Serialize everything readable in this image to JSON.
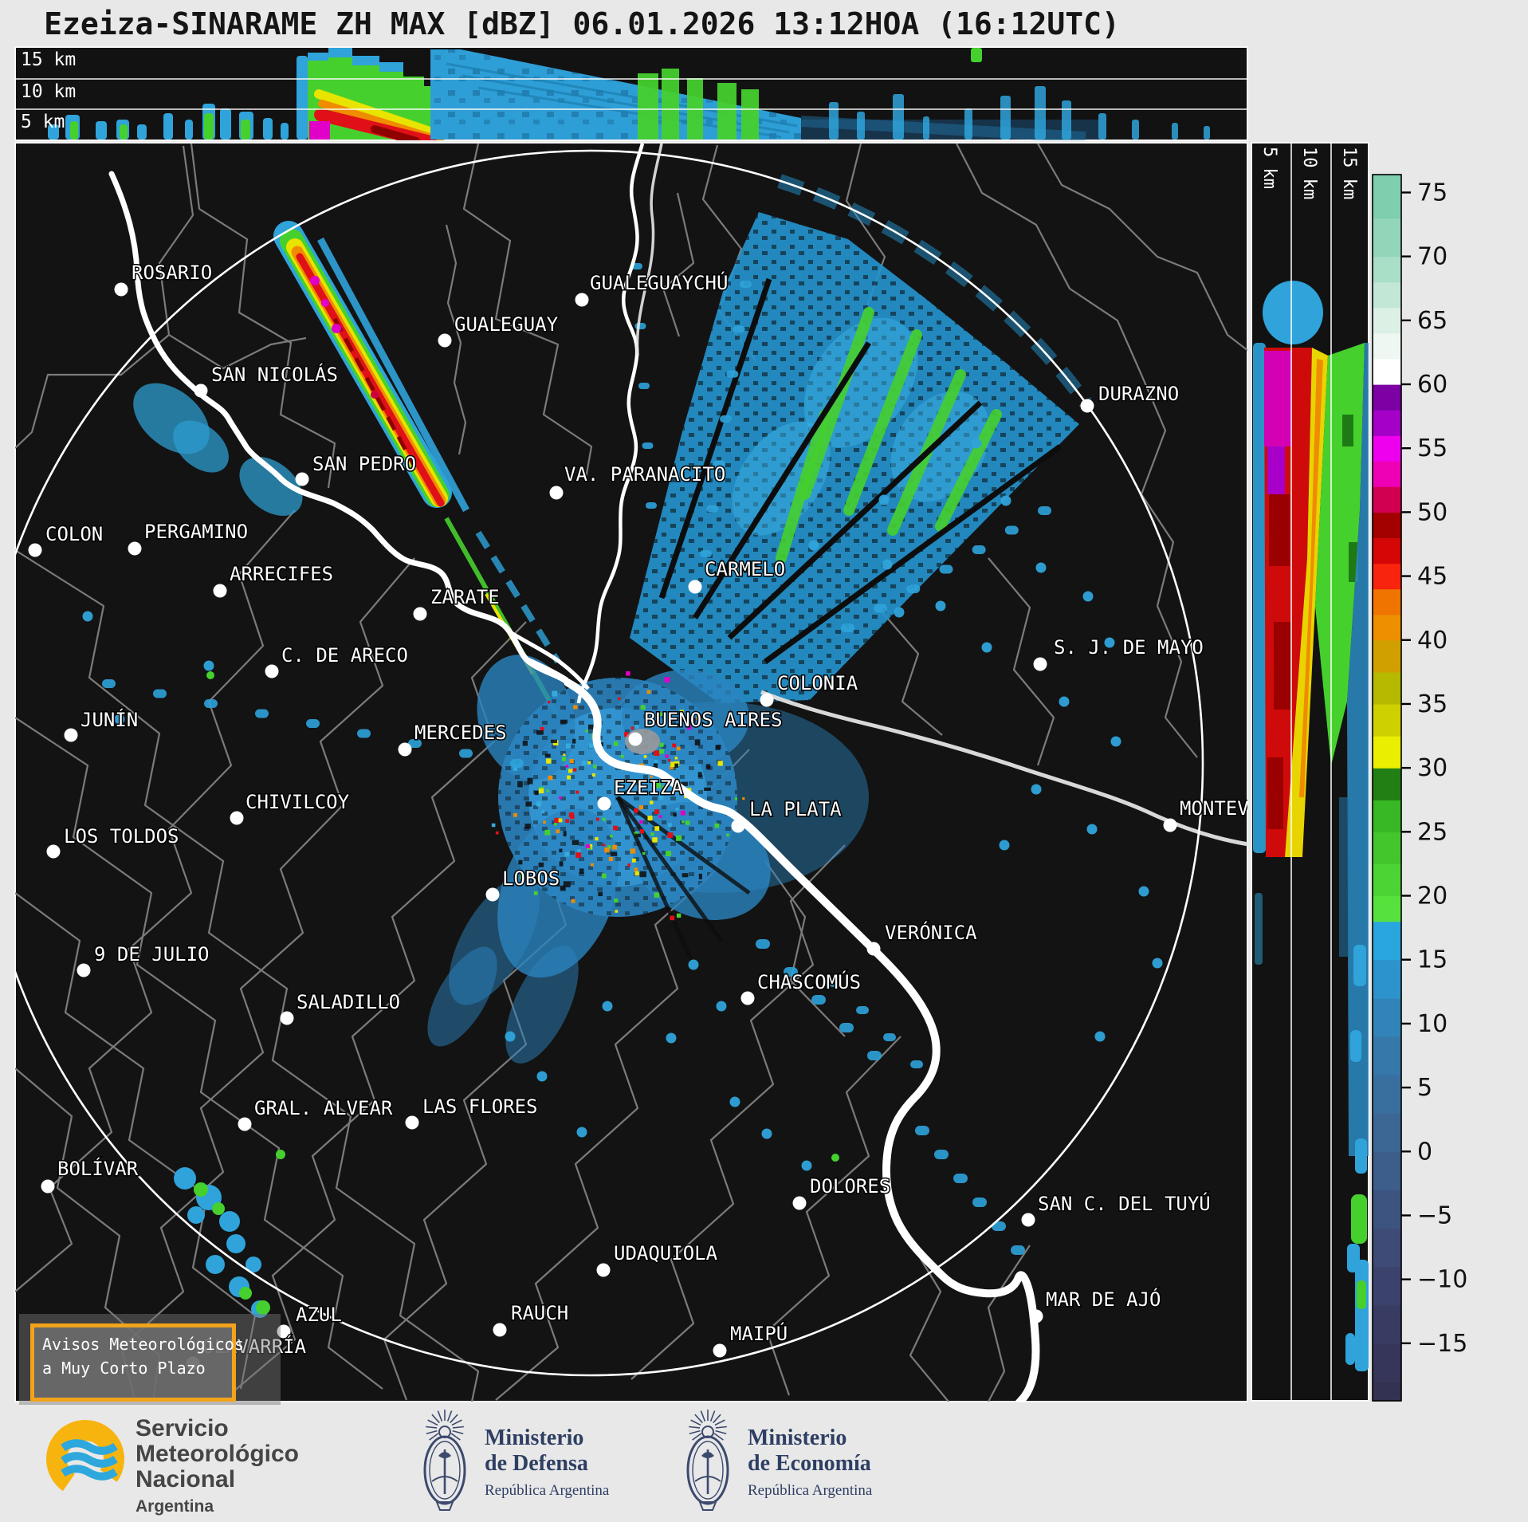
{
  "title": "Ezeiza-SINARAME ZH MAX [dBZ] 06.01.2026 13:12HOA (16:12UTC)",
  "top_panel": {
    "height_labels": [
      "15 km",
      "10 km",
      "5 km"
    ]
  },
  "side_panel": {
    "height_labels": [
      "5 km",
      "10 km",
      "15 km"
    ]
  },
  "colorbar": {
    "unit": "dBZ",
    "ticks": [
      75,
      70,
      65,
      60,
      55,
      50,
      45,
      40,
      35,
      30,
      25,
      20,
      15,
      10,
      5,
      0,
      -5,
      -10,
      -15
    ],
    "range": [
      -19.5,
      76.4
    ],
    "segments": [
      {
        "from": -19.5,
        "to": -18,
        "color": "#343252"
      },
      {
        "from": -18,
        "to": -15,
        "color": "#36365a"
      },
      {
        "from": -15,
        "to": -12,
        "color": "#393c62"
      },
      {
        "from": -12,
        "to": -9,
        "color": "#3b436c"
      },
      {
        "from": -9,
        "to": -6,
        "color": "#3d4b76"
      },
      {
        "from": -6,
        "to": -3,
        "color": "#3e5480"
      },
      {
        "from": -3,
        "to": 0,
        "color": "#3d5d8a"
      },
      {
        "from": 0,
        "to": 3,
        "color": "#3c6694"
      },
      {
        "from": 3,
        "to": 6,
        "color": "#396f9f"
      },
      {
        "from": 6,
        "to": 9,
        "color": "#3678aa"
      },
      {
        "from": 9,
        "to": 12,
        "color": "#3183b8"
      },
      {
        "from": 12,
        "to": 15,
        "color": "#2d93cc"
      },
      {
        "from": 15,
        "to": 18,
        "color": "#29a6de"
      },
      {
        "from": 18,
        "to": 20,
        "color": "#57e13c"
      },
      {
        "from": 20,
        "to": 22.5,
        "color": "#4cd434"
      },
      {
        "from": 22.5,
        "to": 25,
        "color": "#42c62c"
      },
      {
        "from": 25,
        "to": 27.5,
        "color": "#38b824"
      },
      {
        "from": 27.5,
        "to": 30,
        "color": "#217f14"
      },
      {
        "from": 30,
        "to": 32.5,
        "color": "#eaee00"
      },
      {
        "from": 32.5,
        "to": 35,
        "color": "#cfd000"
      },
      {
        "from": 35,
        "to": 37.5,
        "color": "#b5b900"
      },
      {
        "from": 37.5,
        "to": 40,
        "color": "#cfa000"
      },
      {
        "from": 40,
        "to": 42,
        "color": "#ec9000"
      },
      {
        "from": 42,
        "to": 44,
        "color": "#f07400"
      },
      {
        "from": 44,
        "to": 46,
        "color": "#f8240e"
      },
      {
        "from": 46,
        "to": 48,
        "color": "#d40606"
      },
      {
        "from": 48,
        "to": 50,
        "color": "#a30000"
      },
      {
        "from": 50,
        "to": 52,
        "color": "#d20050"
      },
      {
        "from": 52,
        "to": 54,
        "color": "#ee00b4"
      },
      {
        "from": 54,
        "to": 56,
        "color": "#ee00ee"
      },
      {
        "from": 56,
        "to": 58,
        "color": "#a400c8"
      },
      {
        "from": 58,
        "to": 60,
        "color": "#7c00a4"
      },
      {
        "from": 60,
        "to": 62,
        "color": "#ffffff"
      },
      {
        "from": 62,
        "to": 64,
        "color": "#eef7f1"
      },
      {
        "from": 64,
        "to": 66,
        "color": "#ddf0e6"
      },
      {
        "from": 66,
        "to": 68,
        "color": "#c3e7d6"
      },
      {
        "from": 68,
        "to": 70,
        "color": "#a9dec7"
      },
      {
        "from": 70,
        "to": 73,
        "color": "#92d6ba"
      },
      {
        "from": 73,
        "to": 76.4,
        "color": "#7fceae"
      }
    ]
  },
  "map": {
    "warning_box": {
      "line1": "Avisos Meteorológicos",
      "line2": "a Muy Corto Plazo",
      "border_color": "#f2a31b"
    },
    "cities": [
      {
        "name": "ROSARIO",
        "dot": [
          152,
          363
        ],
        "label": [
          165,
          350
        ]
      },
      {
        "name": "SAN NICOLÁS",
        "dot": [
          252,
          490
        ],
        "label": [
          265,
          478
        ]
      },
      {
        "name": "GUALEGUAY",
        "dot": [
          558,
          427
        ],
        "label": [
          570,
          415
        ]
      },
      {
        "name": "GUALEGUAYCHÚ",
        "dot": [
          730,
          376
        ],
        "label": [
          740,
          363
        ]
      },
      {
        "name": "SAN PEDRO",
        "dot": [
          379,
          601
        ],
        "label": [
          392,
          590
        ]
      },
      {
        "name": "VA. PARANACITO",
        "dot": [
          698,
          618
        ],
        "label": [
          708,
          603
        ]
      },
      {
        "name": "ZARATE",
        "dot": [
          527,
          770
        ],
        "label": [
          540,
          757
        ]
      },
      {
        "name": "CARMELO",
        "dot": [
          872,
          736
        ],
        "label": [
          884,
          722
        ]
      },
      {
        "name": "DURAZNO",
        "dot": [
          1364,
          509
        ],
        "label": [
          1378,
          502
        ]
      },
      {
        "name": "COLON",
        "dot": [
          44,
          690
        ],
        "label": [
          57,
          678
        ]
      },
      {
        "name": "PERGAMINO",
        "dot": [
          169,
          688
        ],
        "label": [
          181,
          675
        ]
      },
      {
        "name": "ARRECIFES",
        "dot": [
          276,
          741
        ],
        "label": [
          288,
          728
        ]
      },
      {
        "name": "C. DE ARECO",
        "dot": [
          341,
          842
        ],
        "label": [
          353,
          830
        ]
      },
      {
        "name": "COLONIA",
        "dot": [
          962,
          878
        ],
        "label": [
          975,
          865
        ]
      },
      {
        "name": "S. J. DE MAYO",
        "dot": [
          1305,
          833
        ],
        "label": [
          1322,
          820
        ]
      },
      {
        "name": "JUNÍN",
        "dot": [
          89,
          922
        ],
        "label": [
          101,
          911
        ]
      },
      {
        "name": "MERCEDES",
        "dot": [
          508,
          940
        ],
        "label": [
          520,
          927
        ]
      },
      {
        "name": "BUENOS AIRES",
        "dot": [
          797,
          927
        ],
        "label": [
          808,
          911
        ]
      },
      {
        "name": "EZEIZA",
        "dot": [
          758,
          1008
        ],
        "label": [
          770,
          996
        ]
      },
      {
        "name": "CHIVILCOY",
        "dot": [
          297,
          1026
        ],
        "label": [
          308,
          1014
        ]
      },
      {
        "name": "LA PLATA",
        "dot": [
          926,
          1036
        ],
        "label": [
          940,
          1023
        ]
      },
      {
        "name": "MONTEVIDEO",
        "dot": [
          1468,
          1035
        ],
        "label": [
          1480,
          1022
        ]
      },
      {
        "name": "LOS TOLDOS",
        "dot": [
          67,
          1068
        ],
        "label": [
          80,
          1057
        ]
      },
      {
        "name": "LOBOS",
        "dot": [
          618,
          1122
        ],
        "label": [
          630,
          1110
        ]
      },
      {
        "name": "VERÓNICA",
        "dot": [
          1096,
          1190
        ],
        "label": [
          1110,
          1178
        ]
      },
      {
        "name": "9 DE JULIO",
        "dot": [
          105,
          1217
        ],
        "label": [
          118,
          1205
        ]
      },
      {
        "name": "CHASCOMÚS",
        "dot": [
          938,
          1252
        ],
        "label": [
          950,
          1240
        ]
      },
      {
        "name": "SALADILLO",
        "dot": [
          360,
          1277
        ],
        "label": [
          372,
          1265
        ]
      },
      {
        "name": "GRAL. ALVEAR",
        "dot": [
          307,
          1410
        ],
        "label": [
          319,
          1398
        ]
      },
      {
        "name": "LAS FLORES",
        "dot": [
          517,
          1408
        ],
        "label": [
          530,
          1396
        ]
      },
      {
        "name": "BOLÍVAR",
        "dot": [
          60,
          1488
        ],
        "label": [
          72,
          1474
        ]
      },
      {
        "name": "DOLORES",
        "dot": [
          1003,
          1509
        ],
        "label": [
          1016,
          1496
        ]
      },
      {
        "name": "SAN C. DEL TUYÚ",
        "dot": [
          1290,
          1530
        ],
        "label": [
          1302,
          1518
        ]
      },
      {
        "name": "UDAQUIOLA",
        "dot": [
          757,
          1593
        ],
        "label": [
          770,
          1580
        ]
      },
      {
        "name": "MAR DE AJÓ",
        "dot": [
          1300,
          1651
        ],
        "label": [
          1312,
          1638
        ]
      },
      {
        "name": "AZUL",
        "dot": [
          356,
          1670
        ],
        "label": [
          371,
          1657
        ]
      },
      {
        "name": "RAUCH",
        "dot": [
          627,
          1668
        ],
        "label": [
          641,
          1655
        ]
      },
      {
        "name": "OLAVARRÍA",
        "dot": [
          242,
          1710
        ],
        "label": [
          254,
          1697
        ]
      },
      {
        "name": "MAIPÚ",
        "dot": [
          903,
          1694
        ],
        "label": [
          916,
          1681
        ]
      }
    ]
  },
  "footer": {
    "smn": {
      "line1": "Servicio",
      "line2": "Meteorológico",
      "line3": "Nacional",
      "line4": "Argentina"
    },
    "defensa": {
      "line1": "Ministerio",
      "line2": "de Defensa",
      "line3": "República Argentina"
    },
    "economia": {
      "line1": "Ministerio",
      "line2": "de Economía",
      "line3": "República Argentina"
    }
  },
  "colors": {
    "accent_warning": "#f2a31b",
    "echo_cyan": "#2fa3da",
    "echo_green": "#46d02e",
    "echo_yellow": "#e8e400",
    "echo_orange": "#f08c00",
    "echo_red": "#e01018",
    "echo_magenta": "#e000c8",
    "smn_yellow": "#f7b40f",
    "smn_blue": "#2ea8dc",
    "ministry_navy": "#2e3f63"
  }
}
